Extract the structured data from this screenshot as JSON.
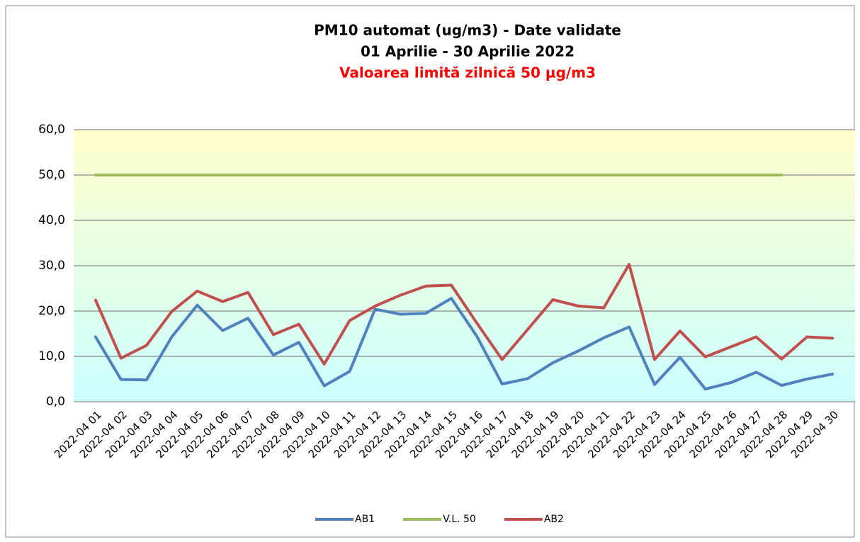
{
  "chart_data": {
    "type": "line",
    "title": [
      "PM10 automat (ug/m3) - Date validate",
      "01 Aprilie - 30 Aprilie 2022"
    ],
    "subtitle": "Valoarea limită zilnică 50 µg/m3",
    "subtitle_color": "#ff0000",
    "categories": [
      "2022-04 01",
      "2022-04 02",
      "2022-04 03",
      "2022-04 04",
      "2022-04 05",
      "2022-04 06",
      "2022-04 07",
      "2022-04 08",
      "2022-04 09",
      "2022-04 10",
      "2022-04 11",
      "2022-04 12",
      "2022-04 13",
      "2022-04 14",
      "2022-04 15",
      "2022-04 16",
      "2022-04 17",
      "2022-04 18",
      "2022-04 19",
      "2022-04 20",
      "2022-04 21",
      "2022-04 22",
      "2022-04 23",
      "2022-04 24",
      "2022-04 25",
      "2022-04 26",
      "2022-04 27",
      "2022-04 28",
      "2022-04 29",
      "2022-04 30"
    ],
    "series": [
      {
        "name": "AB1",
        "color": "#4f81bd",
        "values": [
          14.3,
          4.9,
          4.8,
          14.3,
          21.3,
          15.7,
          18.4,
          10.3,
          13.1,
          3.5,
          6.7,
          20.4,
          19.3,
          19.5,
          22.8,
          14.5,
          3.9,
          5.1,
          8.6,
          11.2,
          14.1,
          16.5,
          3.8,
          9.8,
          2.8,
          4.2,
          6.5,
          3.6,
          5.0,
          6.1
        ]
      },
      {
        "name": "V.L. 50",
        "color": "#9bbb59",
        "values": [
          50,
          50,
          50,
          50,
          50,
          50,
          50,
          50,
          50,
          50,
          50,
          50,
          50,
          50,
          50,
          50,
          50,
          50,
          50,
          50,
          50,
          50,
          50,
          50,
          50,
          50,
          50,
          50,
          null,
          null
        ]
      },
      {
        "name": "AB2",
        "color": "#c0504d",
        "values": [
          22.4,
          9.6,
          12.4,
          19.9,
          24.4,
          22.1,
          24.1,
          14.8,
          17.1,
          8.3,
          17.9,
          21.1,
          23.5,
          25.5,
          25.7,
          17.4,
          9.3,
          15.9,
          22.5,
          21.1,
          20.7,
          30.3,
          9.3,
          15.6,
          9.9,
          12.1,
          14.3,
          9.4,
          14.3,
          14.0
        ]
      }
    ],
    "ylim": [
      0,
      60
    ],
    "yticks": [
      {
        "value": 0,
        "label": "0,0"
      },
      {
        "value": 10,
        "label": "10,0"
      },
      {
        "value": 20,
        "label": "20,0"
      },
      {
        "value": 30,
        "label": "30,0"
      },
      {
        "value": 40,
        "label": "40,0"
      },
      {
        "value": 50,
        "label": "50,0"
      },
      {
        "value": 60,
        "label": "60,0"
      }
    ],
    "grid": true,
    "legend": "bottom"
  }
}
